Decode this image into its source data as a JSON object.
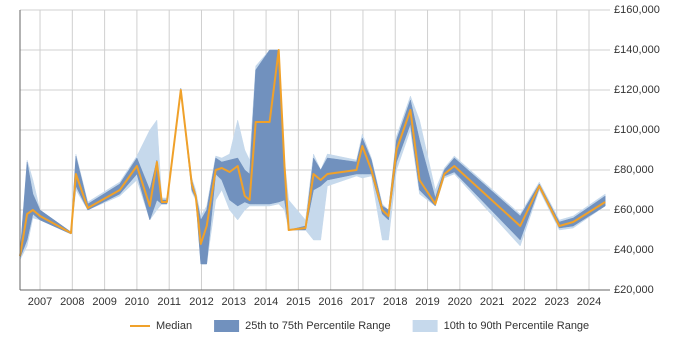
{
  "chart_data": {
    "type": "line",
    "x": [
      2006.38,
      2006.6,
      2006.78,
      2007.0,
      2007.96,
      2008.11,
      2008.48,
      2009.47,
      2010.0,
      2010.4,
      2010.62,
      2010.77,
      2010.93,
      2011.36,
      2011.7,
      2011.82,
      2011.98,
      2012.16,
      2012.44,
      2012.63,
      2012.87,
      2013.12,
      2013.34,
      2013.49,
      2013.68,
      2014.11,
      2014.39,
      2014.57,
      2014.7,
      2015.22,
      2015.47,
      2015.69,
      2015.9,
      2016.8,
      2016.98,
      2017.26,
      2017.6,
      2017.79,
      2018.04,
      2018.47,
      2018.75,
      2019.24,
      2019.52,
      2019.83,
      2021.87,
      2022.46,
      2023.08,
      2023.51,
      2024.5
    ],
    "series": [
      {
        "name": "10th to 90th Percentile Range",
        "kind": "band",
        "color": "#c6d9ec",
        "low": [
          35000,
          42000,
          56000,
          55000,
          48000,
          70000,
          60000,
          67000,
          75000,
          55000,
          60000,
          63000,
          63000,
          119000,
          69000,
          65000,
          33000,
          33000,
          65000,
          70000,
          60000,
          55000,
          60000,
          62000,
          62000,
          62000,
          63000,
          60000,
          50000,
          50000,
          45000,
          45000,
          72000,
          77000,
          76000,
          77000,
          45000,
          45000,
          80000,
          100000,
          68000,
          62000,
          76000,
          78000,
          42000,
          70000,
          50000,
          51000,
          62000
        ],
        "high": [
          38000,
          85000,
          75000,
          60000,
          49000,
          88000,
          64000,
          74000,
          87000,
          100000,
          105000,
          66000,
          66000,
          121000,
          76000,
          70000,
          57000,
          62000,
          87000,
          86000,
          88000,
          105000,
          90000,
          85000,
          132000,
          140000,
          140000,
          85000,
          65000,
          55000,
          88000,
          80000,
          88000,
          85000,
          98000,
          86000,
          63000,
          60000,
          97000,
          117000,
          105000,
          70000,
          81000,
          87000,
          58000,
          74000,
          55000,
          57000,
          68000
        ]
      },
      {
        "name": "25th to 75th Percentile Range",
        "kind": "band",
        "color": "#7191be",
        "low": [
          36000,
          45000,
          58000,
          55000,
          48000,
          72000,
          60000,
          68000,
          78000,
          55000,
          65000,
          63000,
          63000,
          119000,
          70000,
          66000,
          33000,
          33000,
          78000,
          75000,
          65000,
          62000,
          64000,
          63000,
          63000,
          63000,
          64000,
          65000,
          50000,
          50000,
          70000,
          72000,
          75000,
          78000,
          78000,
          78000,
          58000,
          55000,
          84000,
          103000,
          70000,
          62000,
          77000,
          79000,
          45000,
          71000,
          51000,
          52000,
          62000
        ],
        "high": [
          38000,
          84000,
          68000,
          60000,
          49000,
          87000,
          63000,
          73000,
          86000,
          70000,
          85000,
          65000,
          65000,
          121000,
          75000,
          68000,
          55000,
          60000,
          86000,
          84000,
          85000,
          86000,
          80000,
          78000,
          130000,
          140000,
          140000,
          85000,
          50000,
          52000,
          86000,
          80000,
          86000,
          84000,
          96000,
          85000,
          62000,
          60000,
          95000,
          115000,
          95000,
          66000,
          80000,
          86000,
          57000,
          73000,
          54000,
          56000,
          67000
        ]
      },
      {
        "name": "Median",
        "kind": "line",
        "color": "#f0a12a",
        "values": [
          37000,
          58000,
          60000,
          57000,
          48500,
          78000,
          61000,
          70000,
          82000,
          62000,
          84000,
          64000,
          64000,
          120000,
          73000,
          67000,
          43000,
          52000,
          80000,
          81000,
          79000,
          82000,
          67000,
          65000,
          104000,
          104000,
          140000,
          82000,
          50000,
          51000,
          78000,
          75000,
          78000,
          80000,
          92000,
          80000,
          60000,
          57000,
          90000,
          110000,
          75000,
          63000,
          78000,
          82000,
          52000,
          72000,
          52000,
          54000,
          64000
        ]
      }
    ],
    "xlim": [
      2006.38,
      2024.65
    ],
    "xticks": [
      2007,
      2008,
      2009,
      2010,
      2011,
      2012,
      2013,
      2014,
      2015,
      2016,
      2017,
      2018,
      2019,
      2020,
      2021,
      2022,
      2023,
      2024
    ],
    "ylim": [
      20000,
      160000
    ],
    "yticks": [
      {
        "value": 20000,
        "label": "£20,000"
      },
      {
        "value": 40000,
        "label": "£40,000"
      },
      {
        "value": 60000,
        "label": "£60,000"
      },
      {
        "value": 80000,
        "label": "£80,000"
      },
      {
        "value": 100000,
        "label": "£100,000"
      },
      {
        "value": 120000,
        "label": "£120,000"
      },
      {
        "value": 140000,
        "label": "£140,000"
      },
      {
        "value": 160000,
        "label": "£160,000"
      }
    ],
    "grid": true,
    "legend": "bottom"
  }
}
